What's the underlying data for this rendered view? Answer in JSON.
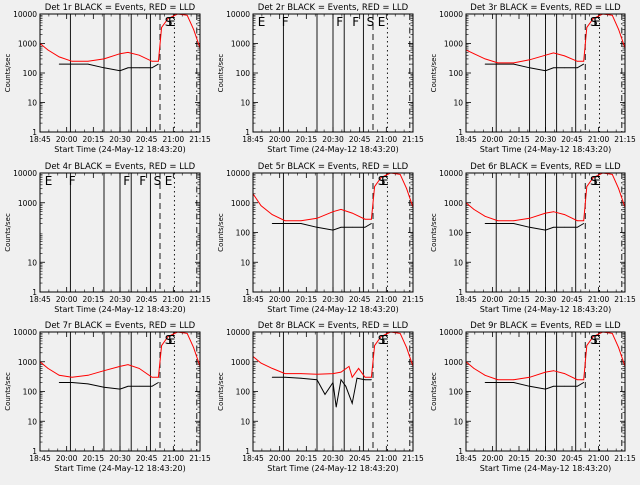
{
  "colors": {
    "background": "#f0f0f0",
    "events": "#000000",
    "lld": "#ff0000"
  },
  "chart_data": [
    {
      "type": "line",
      "title": "Det 1r BLACK = Events, RED = LLD",
      "xlabel": "Start Time (24-May-12 18:43:20)",
      "ylabel": "Counts/sec",
      "xticks": [
        "18:45",
        "20:00",
        "20:15",
        "20:30",
        "20:45",
        "21:00",
        "21:15"
      ],
      "yticks": [
        "1",
        "10",
        "100",
        "1000",
        "10000"
      ],
      "ylim": [
        1,
        10000
      ],
      "yscale": "log",
      "xlim": [
        0,
        1
      ],
      "labels": [
        "S",
        "E"
      ],
      "label_x": [
        0.78,
        0.8
      ],
      "vlines": [
        {
          "x": 0.19,
          "style": "solid"
        },
        {
          "x": 0.4,
          "style": "solid"
        },
        {
          "x": 0.5,
          "style": "solid"
        },
        {
          "x": 0.57,
          "style": "solid"
        },
        {
          "x": 0.69,
          "style": "solid"
        },
        {
          "x": 0.75,
          "style": "dashed"
        },
        {
          "x": 0.84,
          "style": "dotted"
        },
        {
          "x": 0.98,
          "style": "dashdot"
        }
      ],
      "series": [
        {
          "color": "red",
          "x": [
            0,
            0.05,
            0.12,
            0.2,
            0.3,
            0.4,
            0.5,
            0.55,
            0.62,
            0.7,
            0.74,
            0.76,
            0.8,
            0.86,
            0.92,
            0.96,
            1
          ],
          "y": [
            1000,
            600,
            350,
            250,
            250,
            300,
            450,
            500,
            400,
            250,
            250,
            3500,
            7000,
            12000,
            9000,
            3000,
            700
          ]
        },
        {
          "color": "black",
          "x": [
            0.12,
            0.2,
            0.3,
            0.4,
            0.5,
            0.55,
            0.62,
            0.7,
            0.74
          ],
          "y": [
            200,
            200,
            200,
            150,
            120,
            150,
            150,
            150,
            200
          ]
        }
      ]
    },
    {
      "type": "line",
      "title": "Det 2r BLACK = Events, RED = LLD",
      "xlabel": "Start Time (24-May-12 18:43:20)",
      "ylabel": "Counts/sec",
      "xticks": [
        "18:45",
        "20:00",
        "20:15",
        "20:30",
        "20:45",
        "21:00",
        "21:15"
      ],
      "yticks": [
        "1",
        "10",
        "100",
        "1000",
        "10000"
      ],
      "ylim": [
        1,
        10000
      ],
      "yscale": "log",
      "xlim": [
        0,
        1
      ],
      "labels": [
        "E",
        "F",
        "F",
        "F",
        "S",
        "E"
      ],
      "label_x": [
        0.03,
        0.18,
        0.52,
        0.62,
        0.71,
        0.78
      ],
      "vlines": [
        {
          "x": 0.19,
          "style": "solid"
        },
        {
          "x": 0.4,
          "style": "solid"
        },
        {
          "x": 0.5,
          "style": "solid"
        },
        {
          "x": 0.57,
          "style": "solid"
        },
        {
          "x": 0.69,
          "style": "solid"
        },
        {
          "x": 0.75,
          "style": "dashed"
        },
        {
          "x": 0.84,
          "style": "dotted"
        },
        {
          "x": 0.98,
          "style": "dashdot"
        }
      ],
      "series": []
    },
    {
      "type": "line",
      "title": "Det 3r BLACK = Events, RED = LLD",
      "xlabel": "Start Time (24-May-12 18:43:20)",
      "ylabel": "Counts/sec",
      "xticks": [
        "18:45",
        "20:00",
        "20:15",
        "20:30",
        "20:45",
        "21:00",
        "21:15"
      ],
      "yticks": [
        "1",
        "10",
        "100",
        "1000",
        "10000"
      ],
      "ylim": [
        1,
        10000
      ],
      "yscale": "log",
      "xlim": [
        0,
        1
      ],
      "labels": [
        "S",
        "E"
      ],
      "label_x": [
        0.78,
        0.8
      ],
      "vlines": [
        {
          "x": 0.19,
          "style": "solid"
        },
        {
          "x": 0.4,
          "style": "solid"
        },
        {
          "x": 0.5,
          "style": "solid"
        },
        {
          "x": 0.57,
          "style": "solid"
        },
        {
          "x": 0.69,
          "style": "solid"
        },
        {
          "x": 0.75,
          "style": "dashed"
        },
        {
          "x": 0.84,
          "style": "dotted"
        },
        {
          "x": 0.98,
          "style": "dashdot"
        }
      ],
      "series": [
        {
          "color": "red",
          "x": [
            0,
            0.05,
            0.12,
            0.2,
            0.3,
            0.4,
            0.5,
            0.55,
            0.62,
            0.7,
            0.74,
            0.76,
            0.8,
            0.86,
            0.92,
            0.96,
            1
          ],
          "y": [
            600,
            450,
            300,
            220,
            220,
            280,
            400,
            480,
            380,
            250,
            250,
            3500,
            7000,
            12000,
            9000,
            3000,
            700
          ]
        },
        {
          "color": "black",
          "x": [
            0.12,
            0.2,
            0.3,
            0.4,
            0.5,
            0.55,
            0.62,
            0.7,
            0.74
          ],
          "y": [
            200,
            200,
            200,
            150,
            120,
            150,
            150,
            150,
            200
          ]
        }
      ]
    },
    {
      "type": "line",
      "title": "Det 4r BLACK = Events, RED = LLD",
      "xlabel": "Start Time (24-May-12 18:43:20)",
      "ylabel": "Counts/sec",
      "xticks": [
        "18:45",
        "20:00",
        "20:15",
        "20:30",
        "20:45",
        "21:00",
        "21:15"
      ],
      "yticks": [
        "1",
        "10",
        "1000",
        "10000"
      ],
      "ytick_values": [
        1,
        10,
        1000,
        10000
      ],
      "ylim": [
        1,
        10000
      ],
      "yscale": "log",
      "xlim": [
        0,
        1
      ],
      "labels": [
        "E",
        "F",
        "F",
        "F",
        "S",
        "E"
      ],
      "label_x": [
        0.03,
        0.18,
        0.52,
        0.62,
        0.71,
        0.78
      ],
      "vlines": [
        {
          "x": 0.19,
          "style": "solid"
        },
        {
          "x": 0.4,
          "style": "solid"
        },
        {
          "x": 0.5,
          "style": "solid"
        },
        {
          "x": 0.57,
          "style": "solid"
        },
        {
          "x": 0.69,
          "style": "solid"
        },
        {
          "x": 0.75,
          "style": "dashed"
        },
        {
          "x": 0.84,
          "style": "dotted"
        },
        {
          "x": 0.98,
          "style": "dashdot"
        }
      ],
      "series": []
    },
    {
      "type": "line",
      "title": "Det 5r BLACK = Events, RED = LLD",
      "xlabel": "Start Time (24-May-12 18:43:20)",
      "ylabel": "Counts/sec",
      "xticks": [
        "18:45",
        "20:00",
        "20:15",
        "20:30",
        "20:45",
        "21:00",
        "21:15"
      ],
      "yticks": [
        "1",
        "10",
        "100",
        "1000",
        "10000"
      ],
      "ylim": [
        1,
        10000
      ],
      "yscale": "log",
      "xlim": [
        0,
        1
      ],
      "labels": [
        "S",
        "E"
      ],
      "label_x": [
        0.78,
        0.8
      ],
      "vlines": [
        {
          "x": 0.19,
          "style": "solid"
        },
        {
          "x": 0.4,
          "style": "solid"
        },
        {
          "x": 0.5,
          "style": "solid"
        },
        {
          "x": 0.57,
          "style": "solid"
        },
        {
          "x": 0.69,
          "style": "solid"
        },
        {
          "x": 0.75,
          "style": "dashed"
        },
        {
          "x": 0.84,
          "style": "dotted"
        },
        {
          "x": 0.98,
          "style": "dashdot"
        }
      ],
      "series": [
        {
          "color": "red",
          "x": [
            0,
            0.05,
            0.12,
            0.2,
            0.3,
            0.4,
            0.5,
            0.55,
            0.62,
            0.7,
            0.74,
            0.76,
            0.8,
            0.86,
            0.92,
            0.96,
            1
          ],
          "y": [
            2000,
            800,
            400,
            250,
            250,
            300,
            500,
            600,
            450,
            280,
            280,
            3500,
            7000,
            12000,
            9000,
            3000,
            700
          ]
        },
        {
          "color": "black",
          "x": [
            0.12,
            0.2,
            0.3,
            0.4,
            0.5,
            0.55,
            0.62,
            0.7,
            0.74
          ],
          "y": [
            200,
            200,
            200,
            150,
            120,
            150,
            150,
            150,
            200
          ]
        }
      ]
    },
    {
      "type": "line",
      "title": "Det 6r BLACK = Events, RED = LLD",
      "xlabel": "Start Time (24-May-12 18:43:20)",
      "ylabel": "Counts/sec",
      "xticks": [
        "18:45",
        "20:00",
        "20:15",
        "20:30",
        "20:45",
        "21:00",
        "21:15"
      ],
      "yticks": [
        "1",
        "10",
        "100",
        "1000",
        "10000"
      ],
      "ylim": [
        1,
        10000
      ],
      "yscale": "log",
      "xlim": [
        0,
        1
      ],
      "labels": [
        "S",
        "E"
      ],
      "label_x": [
        0.78,
        0.8
      ],
      "vlines": [
        {
          "x": 0.19,
          "style": "solid"
        },
        {
          "x": 0.4,
          "style": "solid"
        },
        {
          "x": 0.5,
          "style": "solid"
        },
        {
          "x": 0.57,
          "style": "solid"
        },
        {
          "x": 0.69,
          "style": "solid"
        },
        {
          "x": 0.75,
          "style": "dashed"
        },
        {
          "x": 0.84,
          "style": "dotted"
        },
        {
          "x": 0.98,
          "style": "dashdot"
        }
      ],
      "series": [
        {
          "color": "red",
          "x": [
            0,
            0.05,
            0.12,
            0.2,
            0.3,
            0.4,
            0.5,
            0.55,
            0.62,
            0.7,
            0.74,
            0.76,
            0.8,
            0.86,
            0.92,
            0.96,
            1
          ],
          "y": [
            1000,
            600,
            350,
            250,
            250,
            300,
            450,
            500,
            400,
            250,
            250,
            3500,
            7000,
            12000,
            9000,
            3000,
            700
          ]
        },
        {
          "color": "black",
          "x": [
            0.12,
            0.2,
            0.3,
            0.4,
            0.5,
            0.55,
            0.62,
            0.7,
            0.74
          ],
          "y": [
            200,
            200,
            200,
            150,
            120,
            150,
            150,
            150,
            200
          ]
        }
      ]
    },
    {
      "type": "line",
      "title": "Det 7r BLACK = Events, RED = LLD",
      "xlabel": "Start Time (24-May-12 18:43:20)",
      "ylabel": "Counts/sec",
      "xticks": [
        "18:45",
        "20:00",
        "20:15",
        "20:30",
        "20:45",
        "21:00",
        "21:15"
      ],
      "yticks": [
        "1",
        "10",
        "100",
        "1000",
        "10000"
      ],
      "ylim": [
        1,
        10000
      ],
      "yscale": "log",
      "xlim": [
        0,
        1
      ],
      "labels": [
        "S",
        "E"
      ],
      "label_x": [
        0.78,
        0.8
      ],
      "vlines": [
        {
          "x": 0.19,
          "style": "solid"
        },
        {
          "x": 0.4,
          "style": "solid"
        },
        {
          "x": 0.5,
          "style": "solid"
        },
        {
          "x": 0.57,
          "style": "solid"
        },
        {
          "x": 0.69,
          "style": "solid"
        },
        {
          "x": 0.75,
          "style": "dashed"
        },
        {
          "x": 0.84,
          "style": "dotted"
        },
        {
          "x": 0.98,
          "style": "dashdot"
        }
      ],
      "series": [
        {
          "color": "red",
          "x": [
            0,
            0.05,
            0.12,
            0.2,
            0.3,
            0.4,
            0.5,
            0.55,
            0.62,
            0.7,
            0.74,
            0.76,
            0.8,
            0.86,
            0.92,
            0.96,
            1
          ],
          "y": [
            1000,
            600,
            350,
            300,
            350,
            500,
            700,
            800,
            600,
            300,
            300,
            3500,
            7000,
            12000,
            9000,
            3000,
            700
          ]
        },
        {
          "color": "black",
          "x": [
            0.12,
            0.2,
            0.3,
            0.4,
            0.5,
            0.55,
            0.62,
            0.7,
            0.74
          ],
          "y": [
            200,
            200,
            180,
            140,
            120,
            150,
            150,
            150,
            200
          ]
        }
      ]
    },
    {
      "type": "line",
      "title": "Det 8r BLACK = Events, RED = LLD",
      "xlabel": "Start Time (24-May-12 18:43:20)",
      "ylabel": "Counts/sec",
      "xticks": [
        "18:45",
        "20:00",
        "20:15",
        "20:30",
        "20:45",
        "21:00",
        "21:15"
      ],
      "yticks": [
        "1",
        "10",
        "100",
        "1000",
        "10000"
      ],
      "ylim": [
        1,
        10000
      ],
      "yscale": "log",
      "xlim": [
        0,
        1
      ],
      "labels": [
        "S",
        "E"
      ],
      "label_x": [
        0.78,
        0.8
      ],
      "vlines": [
        {
          "x": 0.19,
          "style": "solid"
        },
        {
          "x": 0.4,
          "style": "solid"
        },
        {
          "x": 0.5,
          "style": "solid"
        },
        {
          "x": 0.57,
          "style": "solid"
        },
        {
          "x": 0.69,
          "style": "solid"
        },
        {
          "x": 0.75,
          "style": "dashed"
        },
        {
          "x": 0.84,
          "style": "dotted"
        },
        {
          "x": 0.98,
          "style": "dashdot"
        }
      ],
      "series": [
        {
          "color": "red",
          "x": [
            0,
            0.05,
            0.12,
            0.2,
            0.3,
            0.4,
            0.5,
            0.55,
            0.6,
            0.62,
            0.66,
            0.7,
            0.74,
            0.76,
            0.8,
            0.86,
            0.92,
            0.96,
            1
          ],
          "y": [
            1500,
            900,
            600,
            400,
            400,
            380,
            400,
            450,
            700,
            300,
            600,
            300,
            300,
            3500,
            7000,
            12000,
            9000,
            3000,
            700
          ]
        },
        {
          "color": "black",
          "x": [
            0.12,
            0.2,
            0.3,
            0.4,
            0.45,
            0.5,
            0.52,
            0.55,
            0.58,
            0.62,
            0.65,
            0.7,
            0.74
          ],
          "y": [
            300,
            300,
            280,
            250,
            80,
            200,
            30,
            250,
            150,
            40,
            280,
            250,
            250
          ]
        }
      ]
    },
    {
      "type": "line",
      "title": "Det 9r BLACK = Events, RED = LLD",
      "xlabel": "Start Time (24-May-12 18:43:20)",
      "ylabel": "Counts/sec",
      "xticks": [
        "18:45",
        "20:00",
        "20:15",
        "20:30",
        "20:45",
        "21:00",
        "21:15"
      ],
      "yticks": [
        "1",
        "10",
        "100",
        "1000",
        "10000"
      ],
      "ylim": [
        1,
        10000
      ],
      "yscale": "log",
      "xlim": [
        0,
        1
      ],
      "labels": [
        "S",
        "E"
      ],
      "label_x": [
        0.78,
        0.8
      ],
      "vlines": [
        {
          "x": 0.19,
          "style": "solid"
        },
        {
          "x": 0.4,
          "style": "solid"
        },
        {
          "x": 0.5,
          "style": "solid"
        },
        {
          "x": 0.57,
          "style": "solid"
        },
        {
          "x": 0.69,
          "style": "solid"
        },
        {
          "x": 0.75,
          "style": "dashed"
        },
        {
          "x": 0.84,
          "style": "dotted"
        },
        {
          "x": 0.98,
          "style": "dashdot"
        }
      ],
      "series": [
        {
          "color": "red",
          "x": [
            0,
            0.05,
            0.12,
            0.2,
            0.3,
            0.4,
            0.5,
            0.55,
            0.62,
            0.7,
            0.74,
            0.76,
            0.8,
            0.86,
            0.92,
            0.96,
            1
          ],
          "y": [
            1000,
            600,
            350,
            250,
            250,
            300,
            450,
            500,
            400,
            250,
            250,
            3500,
            7000,
            12000,
            9000,
            3000,
            700
          ]
        },
        {
          "color": "black",
          "x": [
            0.12,
            0.2,
            0.3,
            0.4,
            0.5,
            0.55,
            0.62,
            0.7,
            0.74
          ],
          "y": [
            200,
            200,
            200,
            150,
            120,
            150,
            150,
            150,
            200
          ]
        }
      ]
    }
  ]
}
